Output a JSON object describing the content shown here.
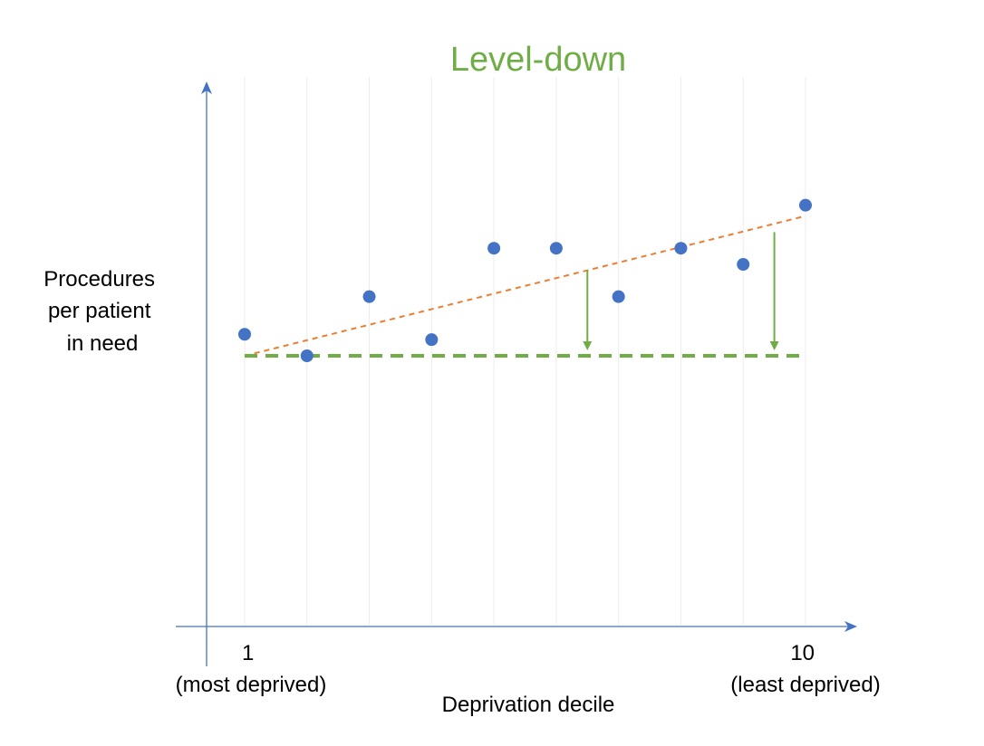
{
  "chart_data": {
    "type": "scatter",
    "title": "Level-down",
    "xlabel": "Deprivation decile",
    "ylabel": [
      "Procedures",
      "per patient",
      "in need"
    ],
    "x_tick_labels": [
      {
        "x": 1,
        "lines": [
          "1",
          "(most deprived)"
        ]
      },
      {
        "x": 10,
        "lines": [
          "10",
          "(least deprived)"
        ]
      }
    ],
    "xlim": [
      1,
      10
    ],
    "ylim": [
      0,
      1
    ],
    "grid": "vertical",
    "points": [
      {
        "x": 1,
        "y": 0.54
      },
      {
        "x": 2,
        "y": 0.5
      },
      {
        "x": 3,
        "y": 0.61
      },
      {
        "x": 4,
        "y": 0.53
      },
      {
        "x": 5,
        "y": 0.7
      },
      {
        "x": 6,
        "y": 0.7
      },
      {
        "x": 7,
        "y": 0.61
      },
      {
        "x": 8,
        "y": 0.7
      },
      {
        "x": 9,
        "y": 0.67
      },
      {
        "x": 10,
        "y": 0.78
      }
    ],
    "trend_line": {
      "x": [
        1,
        10
      ],
      "y": [
        0.5,
        0.76
      ],
      "style": "dashed",
      "color": "#ed7d31"
    },
    "level_line": {
      "x": [
        1,
        10
      ],
      "y": [
        0.5,
        0.5
      ],
      "style": "dashed",
      "color": "#70ad47"
    },
    "arrows": [
      {
        "x": 6.5,
        "y_from": 0.66,
        "y_to": 0.51
      },
      {
        "x": 9.5,
        "y_from": 0.73,
        "y_to": 0.51
      }
    ],
    "colors": {
      "points": "#4472c4",
      "axes": "#4472c4",
      "title": "#70ad47",
      "arrows": "#70ad47",
      "grid": "#ececec"
    }
  }
}
